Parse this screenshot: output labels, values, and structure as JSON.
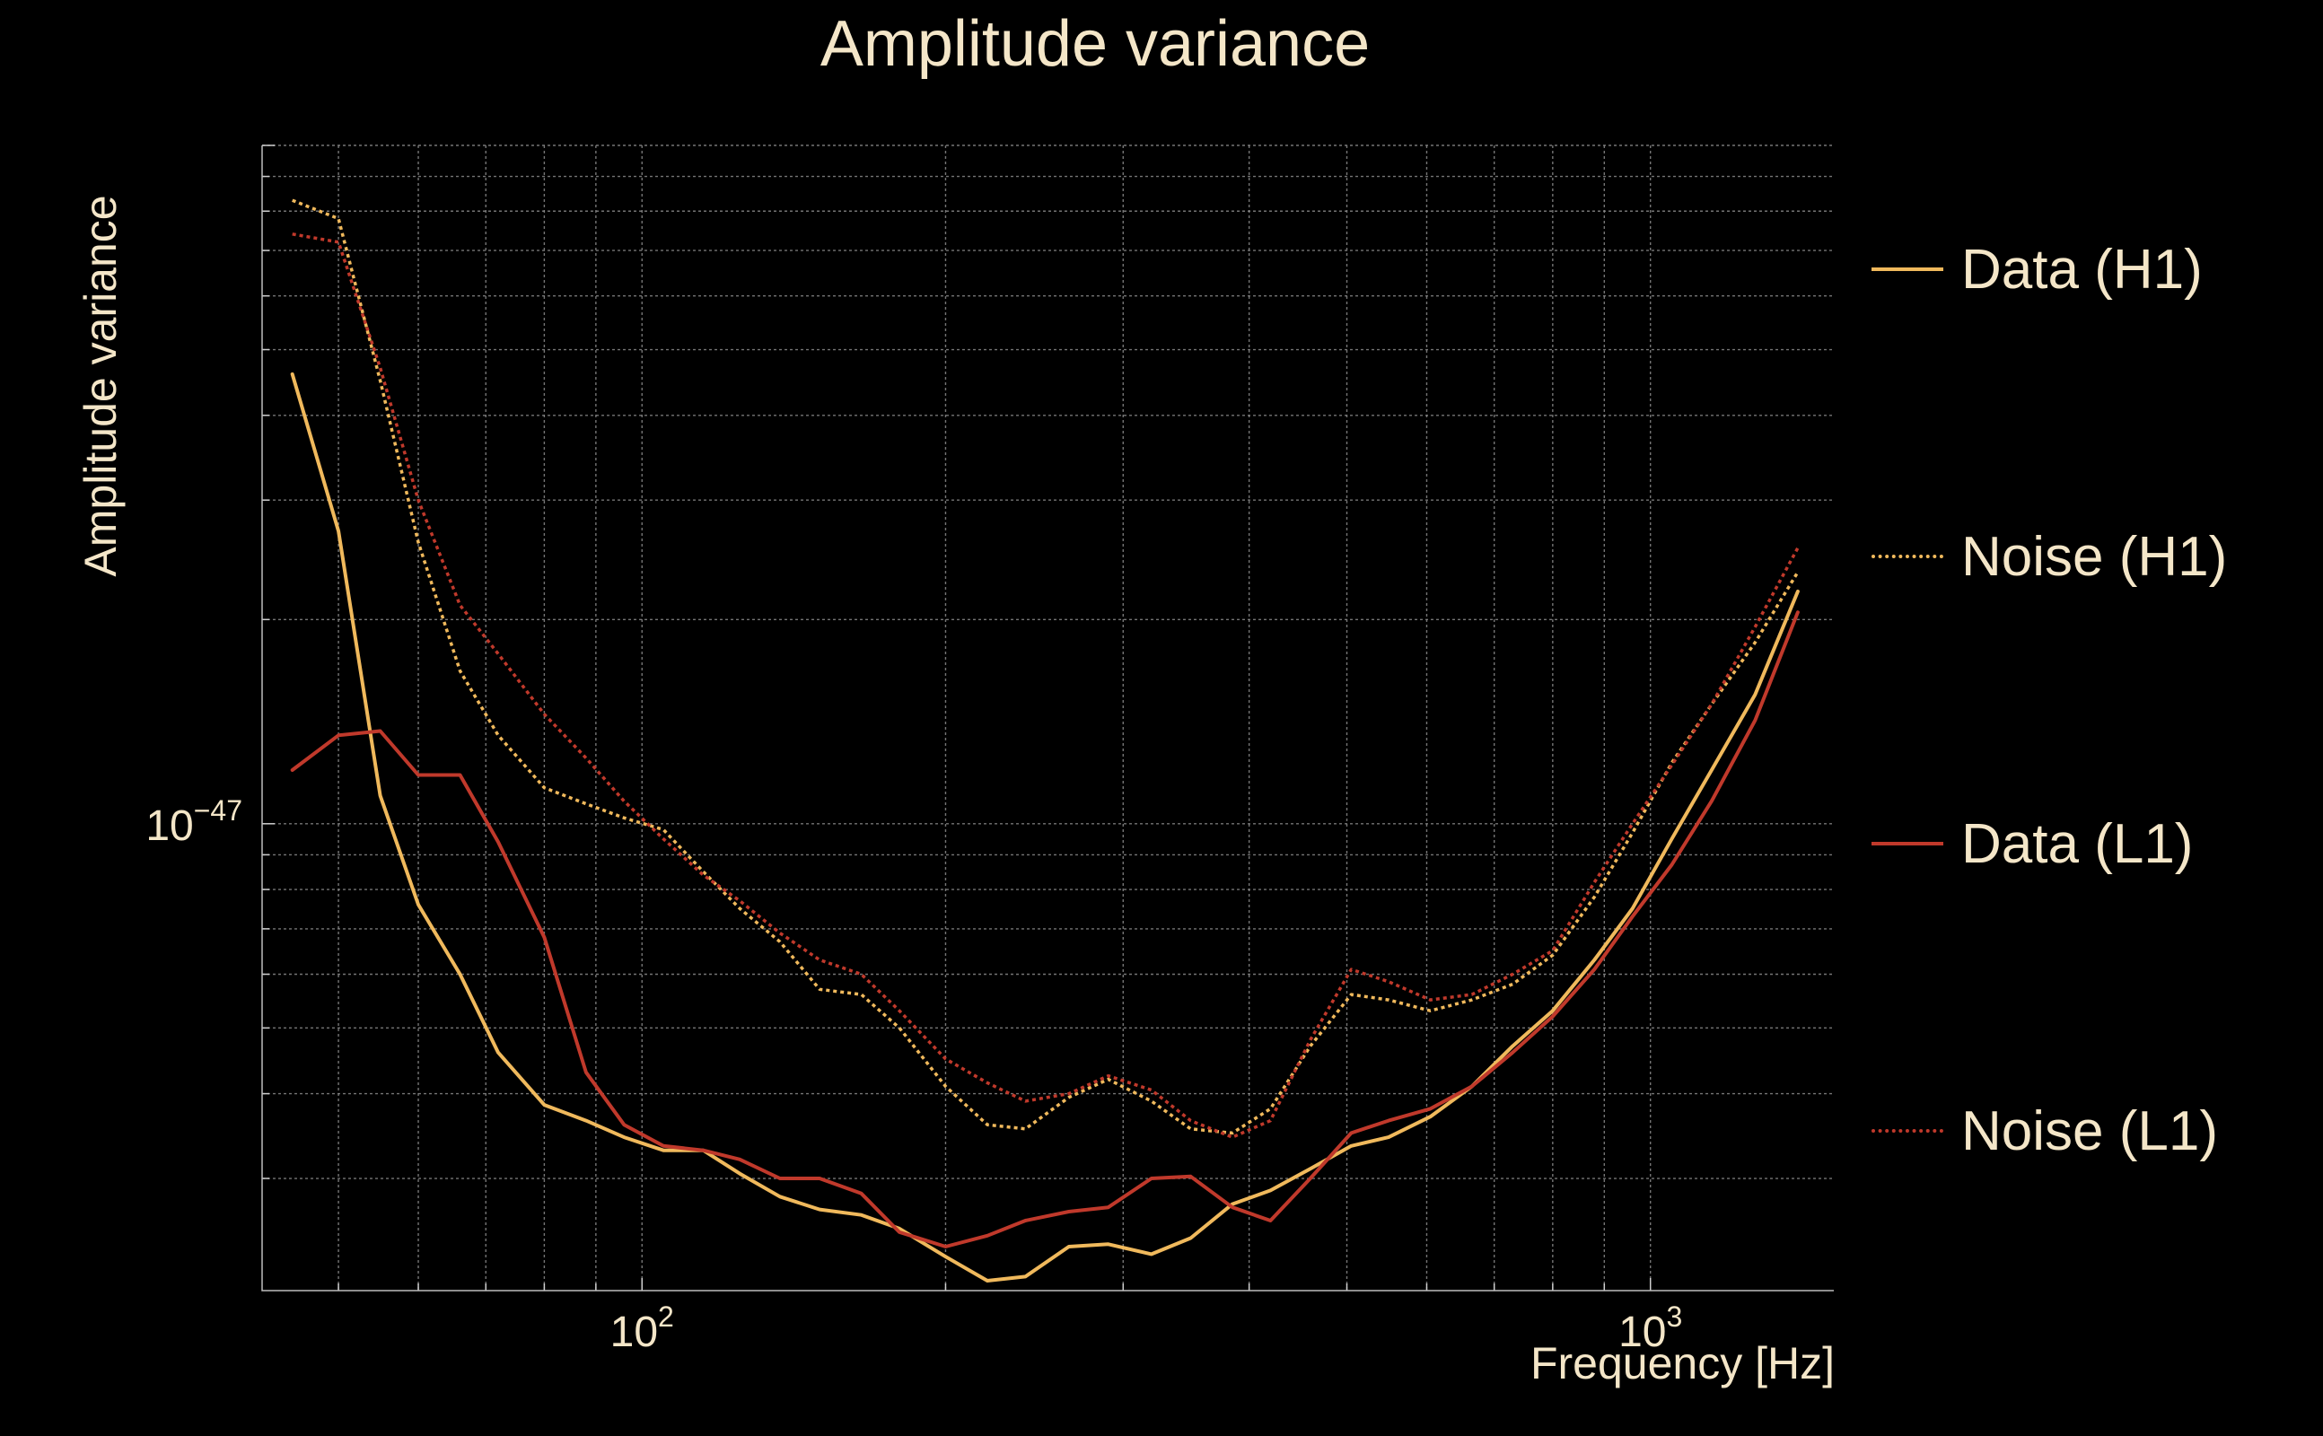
{
  "chart_data": {
    "type": "line",
    "title": "Amplitude variance",
    "xlabel": "Frequency [Hz]",
    "ylabel": "Amplitude variance",
    "xscale": "log",
    "yscale": "log",
    "xlim": [
      42,
      1520
    ],
    "ylim": [
      2.05e-48,
      1e-46
    ],
    "grid": true,
    "legend_position": "right",
    "x_ticks": [
      {
        "value": 100,
        "base": "10",
        "exp": "2"
      },
      {
        "value": 1000,
        "base": "10",
        "exp": "3"
      }
    ],
    "y_ticks": [
      {
        "value": 1e-47,
        "base": "10",
        "exp": "−47"
      }
    ],
    "series": [
      {
        "name": "Data (H1)",
        "color": "#f0b95c",
        "style": "solid",
        "x": [
          45,
          50,
          55,
          60,
          66,
          72,
          80,
          88,
          96,
          105,
          115,
          125,
          137,
          150,
          165,
          180,
          200,
          220,
          240,
          265,
          290,
          320,
          350,
          385,
          420,
          460,
          505,
          550,
          605,
          665,
          730,
          800,
          880,
          960,
          1050,
          1150,
          1270,
          1400
        ],
        "y": [
          4.6e-47,
          2.7e-47,
          1.1e-47,
          7.6e-48,
          6e-48,
          4.6e-48,
          3.85e-48,
          3.65e-48,
          3.45e-48,
          3.3e-48,
          3.3e-48,
          3.05e-48,
          2.82e-48,
          2.7e-48,
          2.65e-48,
          2.53e-48,
          2.3e-48,
          2.12e-48,
          2.15e-48,
          2.38e-48,
          2.4e-48,
          2.32e-48,
          2.45e-48,
          2.75e-48,
          2.88e-48,
          3.1e-48,
          3.35e-48,
          3.45e-48,
          3.7e-48,
          4.1e-48,
          4.7e-48,
          5.3e-48,
          6.3e-48,
          7.5e-48,
          9.5e-48,
          1.2e-47,
          1.55e-47,
          2.2e-47
        ]
      },
      {
        "name": "Noise (H1)",
        "color": "#f0b95c",
        "style": "dotted",
        "x": [
          45,
          50,
          55,
          60,
          66,
          72,
          80,
          88,
          96,
          105,
          115,
          125,
          137,
          150,
          165,
          180,
          200,
          220,
          240,
          265,
          290,
          320,
          350,
          385,
          420,
          460,
          505,
          550,
          605,
          665,
          730,
          800,
          880,
          960,
          1050,
          1150,
          1270,
          1400
        ],
        "y": [
          8.3e-47,
          7.8e-47,
          4.5e-47,
          2.6e-47,
          1.68e-47,
          1.35e-47,
          1.13e-47,
          1.07e-47,
          1.02e-47,
          9.8e-48,
          8.5e-48,
          7.5e-48,
          6.7e-48,
          5.7e-48,
          5.6e-48,
          5e-48,
          4.1e-48,
          3.6e-48,
          3.55e-48,
          3.95e-48,
          4.2e-48,
          3.9e-48,
          3.55e-48,
          3.5e-48,
          3.8e-48,
          4.7e-48,
          5.6e-48,
          5.5e-48,
          5.3e-48,
          5.5e-48,
          5.8e-48,
          6.4e-48,
          7.8e-48,
          9.7e-48,
          1.23e-47,
          1.5e-47,
          1.85e-47,
          2.35e-47
        ]
      },
      {
        "name": "Data (L1)",
        "color": "#c0392b",
        "style": "solid",
        "x": [
          45,
          50,
          55,
          60,
          66,
          72,
          80,
          88,
          96,
          105,
          115,
          125,
          137,
          150,
          165,
          180,
          200,
          220,
          240,
          265,
          290,
          320,
          350,
          385,
          420,
          460,
          505,
          550,
          605,
          665,
          730,
          800,
          880,
          960,
          1050,
          1150,
          1270,
          1400
        ],
        "y": [
          1.2e-47,
          1.35e-47,
          1.37e-47,
          1.18e-47,
          1.18e-47,
          9.4e-48,
          6.8e-48,
          4.3e-48,
          3.6e-48,
          3.35e-48,
          3.3e-48,
          3.2e-48,
          3e-48,
          3e-48,
          2.85e-48,
          2.5e-48,
          2.38e-48,
          2.47e-48,
          2.6e-48,
          2.68e-48,
          2.72e-48,
          3e-48,
          3.02e-48,
          2.72e-48,
          2.6e-48,
          3e-48,
          3.5e-48,
          3.65e-48,
          3.8e-48,
          4.1e-48,
          4.6e-48,
          5.2e-48,
          6.1e-48,
          7.3e-48,
          8.7e-48,
          1.08e-47,
          1.42e-47,
          2.05e-47
        ]
      },
      {
        "name": "Noise (L1)",
        "color": "#c0392b",
        "style": "dotted",
        "x": [
          45,
          50,
          55,
          60,
          66,
          72,
          80,
          88,
          96,
          105,
          115,
          125,
          137,
          150,
          165,
          180,
          200,
          220,
          240,
          265,
          290,
          320,
          350,
          385,
          420,
          460,
          505,
          550,
          605,
          665,
          730,
          800,
          880,
          960,
          1050,
          1150,
          1270,
          1400
        ],
        "y": [
          7.4e-47,
          7.2e-47,
          4.7e-47,
          3e-47,
          2.1e-47,
          1.78e-47,
          1.45e-47,
          1.25e-47,
          1.08e-47,
          9.5e-48,
          8.4e-48,
          7.7e-48,
          6.9e-48,
          6.3e-48,
          6e-48,
          5.3e-48,
          4.5e-48,
          4.15e-48,
          3.9e-48,
          4e-48,
          4.25e-48,
          4.05e-48,
          3.65e-48,
          3.45e-48,
          3.65e-48,
          4.8e-48,
          6.1e-48,
          5.85e-48,
          5.5e-48,
          5.6e-48,
          6e-48,
          6.5e-48,
          8.2e-48,
          1e-47,
          1.22e-47,
          1.5e-47,
          1.95e-47,
          2.55e-47
        ]
      }
    ]
  }
}
